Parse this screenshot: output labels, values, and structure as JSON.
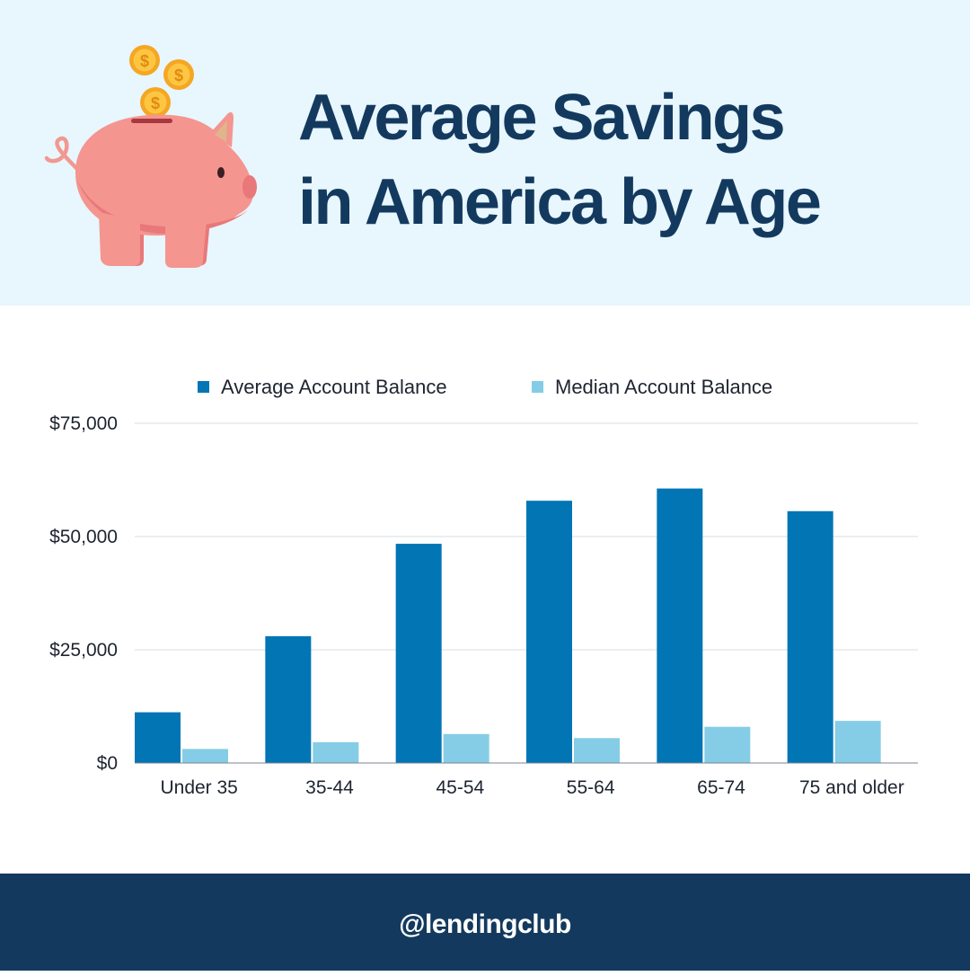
{
  "header": {
    "title_line1": "Average Savings",
    "title_line2": "in America by Age",
    "illustration": "piggy-bank-with-coins-icon"
  },
  "chart_data": {
    "type": "bar",
    "categories": [
      "Under 35",
      "35-44",
      "45-54",
      "55-64",
      "65-74",
      "75 and older"
    ],
    "series": [
      {
        "name": "Average Account Balance",
        "color": "#0275b5",
        "values": [
          11200,
          28000,
          48400,
          57900,
          60600,
          55600
        ]
      },
      {
        "name": "Median Account Balance",
        "color": "#85cde6",
        "values": [
          3100,
          4600,
          6400,
          5500,
          8000,
          9300
        ]
      }
    ],
    "ylim": [
      0,
      75000
    ],
    "yticks": [
      0,
      25000,
      50000,
      75000
    ],
    "ytick_labels": [
      "$0",
      "$25,000",
      "$50,000",
      "$75,000"
    ],
    "grid": true,
    "legend_position": "top-center"
  },
  "footer": {
    "handle": "@lendingclub"
  }
}
